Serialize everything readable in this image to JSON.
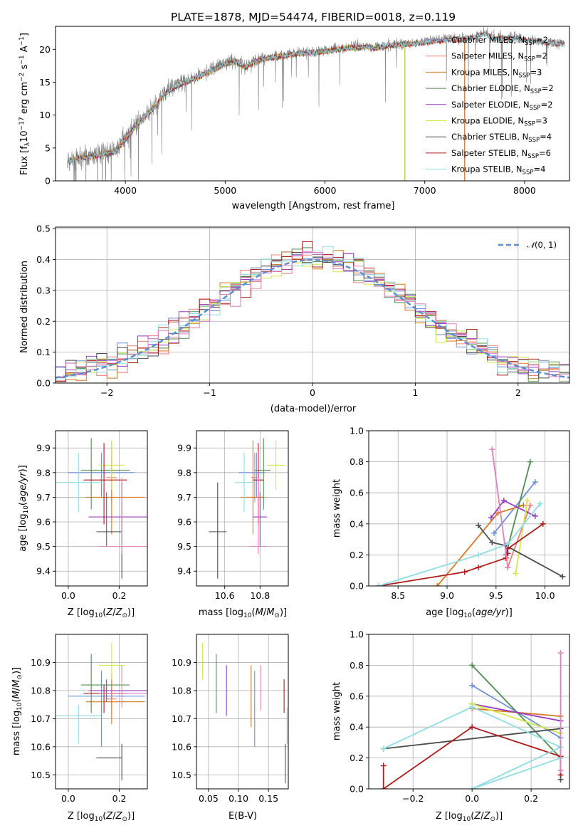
{
  "colors": {
    "Chabrier MILES": "#6f90dd",
    "Salpeter MILES": "#f07e7e",
    "Kroupa MILES": "#d9781e",
    "Chabrier ELODIE": "#4f8f4f",
    "Salpeter ELODIE": "#9b3bc4",
    "Kroupa ELODIE": "#d4e84a",
    "Chabrier STELIB": "#4d4d4d",
    "Salpeter STELIB": "#b01c1c",
    "Kroupa STELIB": "#8fdde2",
    "pink": "#e37fc0",
    "normal": "#5b8dd9"
  },
  "chart_data": [
    {
      "id": "spectrum",
      "type": "line",
      "title": "PLATE=1878, MJD=54474, FIBERID=0018, z=0.119",
      "xlabel": "wavelength [Angstrom, rest frame]",
      "ylabel": "Flux [f_λ10^-17 erg cm^-2 s^-1 A^-1]",
      "xlim": [
        3300,
        8450
      ],
      "ylim": [
        0,
        23.5
      ],
      "xticks": [
        4000,
        5000,
        6000,
        7000,
        8000
      ],
      "yticks": [
        0,
        5,
        10,
        15,
        20
      ],
      "legend": [
        "Chabrier MILES, N_SSP=2",
        "Salpeter MILES, N_SSP=2",
        "Kroupa MILES, N_SSP=3",
        "Chabrier ELODIE, N_SSP=2",
        "Salpeter ELODIE, N_SSP=2",
        "Kroupa ELODIE, N_SSP=3",
        "Chabrier STELIB, N_SSP=4",
        "Salpeter STELIB, N_SSP=6",
        "Kroupa STELIB, N_SSP=4"
      ],
      "legend_placement": "right",
      "data_envelope": [
        [
          3420,
          3.2
        ],
        [
          3500,
          3.5
        ],
        [
          3700,
          4.0
        ],
        [
          3900,
          4.6
        ],
        [
          4000,
          6.5
        ],
        [
          4100,
          8.5
        ],
        [
          4200,
          10.0
        ],
        [
          4300,
          11.5
        ],
        [
          4400,
          13.5
        ],
        [
          4500,
          14.5
        ],
        [
          4600,
          15.2
        ],
        [
          4700,
          15.8
        ],
        [
          4800,
          16.5
        ],
        [
          4900,
          17.2
        ],
        [
          5000,
          18.0
        ],
        [
          5100,
          18.3
        ],
        [
          5200,
          17.4
        ],
        [
          5300,
          18.3
        ],
        [
          5400,
          18.8
        ],
        [
          5500,
          19.0
        ],
        [
          5600,
          19.2
        ],
        [
          5700,
          19.5
        ],
        [
          5800,
          19.6
        ],
        [
          5900,
          19.6
        ],
        [
          6000,
          19.9
        ],
        [
          6100,
          20.1
        ],
        [
          6200,
          20.3
        ],
        [
          6300,
          20.5
        ],
        [
          6400,
          20.5
        ],
        [
          6500,
          20.4
        ],
        [
          6600,
          20.6
        ],
        [
          6700,
          20.8
        ],
        [
          6800,
          20.9
        ],
        [
          6900,
          21.1
        ],
        [
          7000,
          21.2
        ],
        [
          7100,
          21.4
        ],
        [
          7200,
          21.6
        ],
        [
          7300,
          21.6
        ],
        [
          7400,
          21.7
        ],
        [
          7500,
          22.0
        ],
        [
          7600,
          22.5
        ],
        [
          7700,
          21.8
        ],
        [
          7800,
          21.6
        ],
        [
          7900,
          21.8
        ],
        [
          8000,
          21.6
        ],
        [
          8100,
          21.4
        ],
        [
          8200,
          21.2
        ],
        [
          8300,
          21.0
        ],
        [
          8400,
          21.0
        ]
      ],
      "model_end": {
        "MILES": 7400,
        "ELODIE": 6800,
        "STELIB": 8400
      }
    },
    {
      "id": "residuals",
      "type": "histogram",
      "xlabel": "(data-model)/error",
      "ylabel": "Normed distribution",
      "xlim": [
        -2.5,
        2.5
      ],
      "ylim": [
        0,
        0.505
      ],
      "xticks": [
        -2,
        -1,
        0,
        1,
        2
      ],
      "yticks": [
        0.0,
        0.1,
        0.2,
        0.3,
        0.4,
        0.5
      ],
      "bin_edges_range": [
        -2.5,
        2.5
      ],
      "n_bins": 50,
      "reference_curve": "N(0,1)",
      "legend": [
        "$\\mathcal{N}(0,1)$"
      ],
      "legend_placement": "top-right",
      "grid": true
    },
    {
      "id": "age_vs_Z",
      "type": "errorbar",
      "xlabel": "Z [log10(Z/Z_sun)]",
      "ylabel": "age [log10(age/yr)]",
      "xlim": [
        -0.05,
        0.31
      ],
      "ylim": [
        9.34,
        9.97
      ],
      "xticks": [
        0.0,
        0.2
      ],
      "yticks": [
        9.4,
        9.5,
        9.6,
        9.7,
        9.8,
        9.9
      ],
      "points": [
        {
          "model": "Chabrier MILES",
          "x": 0.13,
          "xerr": [
            0.13,
            0.13
          ],
          "y": 9.8,
          "yerr": [
            0.1,
            0.08
          ]
        },
        {
          "model": "Salpeter MILES",
          "x": 0.17,
          "xerr": [
            0.02,
            0.02
          ],
          "y": 9.78,
          "yerr": [
            0.1,
            0.1
          ]
        },
        {
          "model": "Kroupa MILES",
          "x": 0.17,
          "xerr": [
            0.1,
            0.13
          ],
          "y": 9.7,
          "yerr": [
            0.15,
            0.23
          ]
        },
        {
          "model": "Chabrier ELODIE",
          "x": 0.09,
          "xerr": [
            0.04,
            0.15
          ],
          "y": 9.81,
          "yerr": [
            0.16,
            0.13
          ]
        },
        {
          "model": "Salpeter ELODIE",
          "x": 0.15,
          "xerr": [
            0.07,
            0.16
          ],
          "y": 9.62,
          "yerr": [
            0.12,
            0.1
          ]
        },
        {
          "model": "Kroupa ELODIE",
          "x": 0.17,
          "xerr": [
            0.05,
            0.05
          ],
          "y": 9.83,
          "yerr": [
            0.1,
            0.1
          ]
        },
        {
          "model": "Chabrier STELIB",
          "x": 0.21,
          "xerr": [
            0.1,
            0.0
          ],
          "y": 9.56,
          "yerr": [
            0.19,
            0.2
          ]
        },
        {
          "model": "Salpeter STELIB",
          "x": 0.14,
          "xerr": [
            0.08,
            0.09
          ],
          "y": 9.77,
          "yerr": [
            0.18,
            0.15
          ]
        },
        {
          "model": "Kroupa STELIB",
          "x": 0.04,
          "xerr": [
            0.09,
            0.09
          ],
          "y": 9.76,
          "yerr": [
            0.12,
            0.12
          ]
        },
        {
          "model": "pink",
          "x": 0.21,
          "xerr": [
            0.09,
            0.1
          ],
          "y": 9.5,
          "yerr": [
            0.03,
            0.28
          ]
        }
      ]
    },
    {
      "id": "age_vs_mass",
      "type": "errorbar",
      "xlabel": "mass [log10(M/M_sun)]",
      "xlim": [
        10.44,
        10.96
      ],
      "ylim": [
        9.34,
        9.97
      ],
      "xticks": [
        10.6,
        10.8
      ],
      "yticks": [
        9.4,
        9.5,
        9.6,
        9.7,
        9.8,
        9.9
      ],
      "points": [
        {
          "model": "Chabrier MILES",
          "x": 10.78,
          "xerr": [
            0.1,
            0.05
          ],
          "y": 9.8,
          "yerr": [
            0.1,
            0.08
          ]
        },
        {
          "model": "Salpeter MILES",
          "x": 10.77,
          "xerr": [
            0.02,
            0.02
          ],
          "y": 9.78,
          "yerr": [
            0.1,
            0.1
          ]
        },
        {
          "model": "Kroupa MILES",
          "x": 10.76,
          "xerr": [
            0.07,
            0.07
          ],
          "y": 9.7,
          "yerr": [
            0.15,
            0.23
          ]
        },
        {
          "model": "Chabrier ELODIE",
          "x": 10.82,
          "xerr": [
            0.05,
            0.04
          ],
          "y": 9.81,
          "yerr": [
            0.16,
            0.13
          ]
        },
        {
          "model": "Salpeter ELODIE",
          "x": 10.8,
          "xerr": [
            0.04,
            0.04
          ],
          "y": 9.62,
          "yerr": [
            0.12,
            0.1
          ]
        },
        {
          "model": "Kroupa ELODIE",
          "x": 10.89,
          "xerr": [
            0.05,
            0.05
          ],
          "y": 9.83,
          "yerr": [
            0.1,
            0.1
          ]
        },
        {
          "model": "Chabrier STELIB",
          "x": 10.56,
          "xerr": [
            0.05,
            0.05
          ],
          "y": 9.56,
          "yerr": [
            0.19,
            0.2
          ]
        },
        {
          "model": "Salpeter STELIB",
          "x": 10.79,
          "xerr": [
            0.03,
            0.03
          ],
          "y": 9.77,
          "yerr": [
            0.18,
            0.15
          ]
        },
        {
          "model": "Kroupa STELIB",
          "x": 10.71,
          "xerr": [
            0.05,
            0.05
          ],
          "y": 9.76,
          "yerr": [
            0.12,
            0.12
          ]
        },
        {
          "model": "pink",
          "x": 10.79,
          "xerr": [
            0.05,
            0.05
          ],
          "y": 9.5,
          "yerr": [
            0.03,
            0.28
          ]
        }
      ]
    },
    {
      "id": "weight_vs_age",
      "type": "line",
      "xlabel": "age [log10(age/yr)]",
      "ylabel": "mass weight",
      "xlim": [
        8.2,
        10.25
      ],
      "ylim": [
        0,
        1
      ],
      "xticks": [
        8.5,
        9.0,
        9.5,
        10.0
      ],
      "yticks": [
        0.0,
        0.2,
        0.4,
        0.6,
        0.8,
        1.0
      ],
      "series": [
        {
          "model": "Chabrier MILES",
          "x": [
            9.48,
            9.9
          ],
          "y": [
            0.34,
            0.67
          ]
        },
        {
          "model": "Salpeter MILES",
          "x": [
            9.62,
            9.85
          ],
          "y": [
            0.12,
            0.52
          ]
        },
        {
          "model": "Kroupa MILES",
          "x": [
            8.9,
            9.52,
            9.78
          ],
          "y": [
            0.0,
            0.47,
            0.52
          ]
        },
        {
          "model": "Chabrier ELODIE",
          "x": [
            9.6,
            9.85
          ],
          "y": [
            0.2,
            0.8
          ]
        },
        {
          "model": "Salpeter ELODIE",
          "x": [
            9.45,
            9.58,
            9.9
          ],
          "y": [
            0.44,
            0.55,
            0.45
          ]
        },
        {
          "model": "Kroupa ELODIE",
          "x": [
            9.7,
            9.82
          ],
          "y": [
            0.08,
            0.55
          ]
        },
        {
          "model": "Chabrier STELIB",
          "x": [
            9.32,
            9.46,
            9.6,
            10.18
          ],
          "y": [
            0.39,
            0.28,
            0.26,
            0.06
          ]
        },
        {
          "model": "Salpeter STELIB",
          "x": [
            8.3,
            9.18,
            9.32,
            9.6,
            9.62,
            9.62,
            9.98
          ],
          "y": [
            0.0,
            0.09,
            0.12,
            0.18,
            0.21,
            0.24,
            0.4
          ]
        },
        {
          "model": "Kroupa STELIB",
          "x": [
            8.3,
            9.32,
            9.62,
            9.95
          ],
          "y": [
            0.0,
            0.2,
            0.27,
            0.53
          ]
        },
        {
          "model": "pink",
          "x": [
            9.46,
            9.62
          ],
          "y": [
            0.88,
            0.12
          ]
        }
      ]
    },
    {
      "id": "mass_vs_Z",
      "type": "errorbar",
      "xlabel": "Z [log10(Z/Z_sun)]",
      "ylabel": "mass [log10(M/M_sun)]",
      "xlim": [
        -0.05,
        0.31
      ],
      "ylim": [
        10.45,
        11.0
      ],
      "xticks": [
        0.0,
        0.2
      ],
      "yticks": [
        10.5,
        10.6,
        10.7,
        10.8,
        10.9
      ],
      "points": [
        {
          "model": "Chabrier MILES",
          "x": 0.13,
          "xerr": [
            0.13,
            0.17
          ],
          "y": 10.78,
          "yerr": [
            0.18,
            0.09
          ]
        },
        {
          "model": "Salpeter MILES",
          "x": 0.17,
          "xerr": [
            0.02,
            0.02
          ],
          "y": 10.77,
          "yerr": [
            0.05,
            0.05
          ]
        },
        {
          "model": "Kroupa MILES",
          "x": 0.17,
          "xerr": [
            0.1,
            0.13
          ],
          "y": 10.76,
          "yerr": [
            0.08,
            0.1
          ]
        },
        {
          "model": "Chabrier ELODIE",
          "x": 0.09,
          "xerr": [
            0.04,
            0.15
          ],
          "y": 10.82,
          "yerr": [
            0.1,
            0.11
          ]
        },
        {
          "model": "Salpeter ELODIE",
          "x": 0.15,
          "xerr": [
            0.07,
            0.16
          ],
          "y": 10.8,
          "yerr": [
            0.04,
            0.04
          ]
        },
        {
          "model": "Kroupa ELODIE",
          "x": 0.17,
          "xerr": [
            0.05,
            0.05
          ],
          "y": 10.89,
          "yerr": [
            0.05,
            0.08
          ]
        },
        {
          "model": "Chabrier STELIB",
          "x": 0.21,
          "xerr": [
            0.1,
            0.0
          ],
          "y": 10.56,
          "yerr": [
            0.08,
            0.05
          ]
        },
        {
          "model": "Salpeter STELIB",
          "x": 0.14,
          "xerr": [
            0.08,
            0.09
          ],
          "y": 10.79,
          "yerr": [
            0.07,
            0.03
          ]
        },
        {
          "model": "Kroupa STELIB",
          "x": 0.04,
          "xerr": [
            0.09,
            0.09
          ],
          "y": 10.71,
          "yerr": [
            0.1,
            0.04
          ]
        },
        {
          "model": "pink",
          "x": 0.21,
          "xerr": [
            0.09,
            0.1
          ],
          "y": 10.79,
          "yerr": [
            0.05,
            0.1
          ]
        }
      ]
    },
    {
      "id": "mass_vs_ebv",
      "type": "errorbar",
      "xlabel": "E(B-V)",
      "xlim": [
        0.03,
        0.183
      ],
      "ylim": [
        10.45,
        11.0
      ],
      "xticks": [
        0.05,
        0.1,
        0.15
      ],
      "yticks": [
        10.5,
        10.6,
        10.7,
        10.8,
        10.9
      ],
      "points": [
        {
          "model": "Kroupa ELODIE",
          "x": 0.04,
          "y": 10.89,
          "yerr": [
            0.05,
            0.08
          ]
        },
        {
          "model": "Chabrier ELODIE",
          "x": 0.063,
          "y": 10.82,
          "yerr": [
            0.1,
            0.11
          ]
        },
        {
          "model": "Salpeter ELODIE",
          "x": 0.08,
          "y": 10.8,
          "yerr": [
            0.09,
            0.09
          ]
        },
        {
          "model": "Kroupa MILES",
          "x": 0.121,
          "y": 10.78,
          "yerr": [
            0.11,
            0.11
          ]
        },
        {
          "model": "Chabrier MILES",
          "x": 0.127,
          "y": 10.78,
          "yerr": [
            0.18,
            0.09
          ]
        },
        {
          "model": "pink",
          "x": 0.137,
          "y": 10.81,
          "yerr": [
            0.08,
            0.08
          ]
        },
        {
          "model": "Salpeter STELIB",
          "x": 0.176,
          "y": 10.79,
          "yerr": [
            0.07,
            0.05
          ]
        },
        {
          "model": "Chabrier STELIB",
          "x": 0.178,
          "y": 10.55,
          "yerr": [
            0.08,
            0.06
          ]
        },
        {
          "model": "Kroupa STELIB",
          "x": 0.181,
          "y": 10.69,
          "yerr": [
            0.08,
            0.05
          ]
        }
      ]
    },
    {
      "id": "weight_vs_Z",
      "type": "line",
      "xlabel": "Z [log10(Z/Z_sun)]",
      "ylabel": "mass weight",
      "xlim": [
        -0.35,
        0.33
      ],
      "ylim": [
        0,
        1
      ],
      "xticks": [
        -0.2,
        0.0,
        0.2
      ],
      "yticks": [
        0.0,
        0.2,
        0.4,
        0.6,
        0.8,
        1.0
      ],
      "series": [
        {
          "model": "Chabrier MILES",
          "x": [
            0.0,
            0.3
          ],
          "y": [
            0.67,
            0.33
          ]
        },
        {
          "model": "Kroupa MILES",
          "x": [
            0.0,
            0.3
          ],
          "y": [
            0.52,
            0.47
          ]
        },
        {
          "model": "Chabrier ELODIE",
          "x": [
            0.0,
            0.3
          ],
          "y": [
            0.8,
            0.2
          ]
        },
        {
          "model": "Salpeter ELODIE",
          "x": [
            0.0,
            0.3
          ],
          "y": [
            0.55,
            0.44
          ]
        },
        {
          "model": "Kroupa ELODIE",
          "x": [
            0.0,
            0.3
          ],
          "y": [
            0.55,
            0.36
          ]
        },
        {
          "model": "Chabrier STELIB",
          "x": [
            -0.3,
            0.3,
            0.3
          ],
          "y": [
            0.26,
            0.39,
            0.06
          ]
        },
        {
          "model": "Salpeter STELIB",
          "x": [
            -0.3,
            -0.3,
            0.0,
            0.3,
            0.3
          ],
          "y": [
            0.15,
            0.0,
            0.4,
            0.21,
            0.09
          ]
        },
        {
          "model": "Kroupa STELIB",
          "x": [
            -0.3,
            0.0,
            0.3,
            0.0,
            0.3
          ],
          "y": [
            0.26,
            0.53,
            0.27,
            0.0,
            0.2
          ]
        },
        {
          "model": "pink",
          "x": [
            0.3,
            0.3
          ],
          "y": [
            0.88,
            0.12
          ]
        }
      ]
    }
  ]
}
